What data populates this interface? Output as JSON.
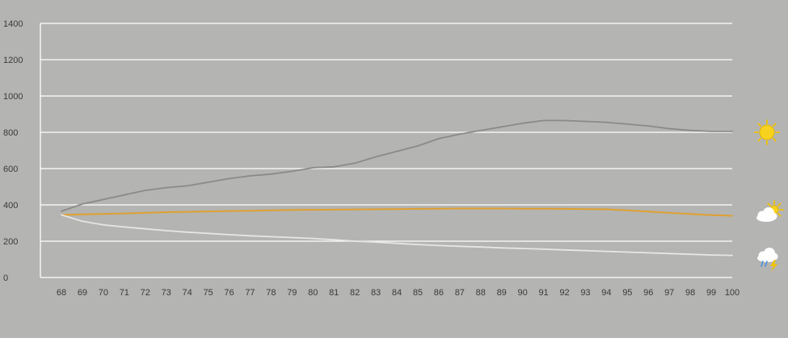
{
  "chart_data": {
    "type": "line",
    "title": "",
    "xlabel": "",
    "ylabel": "",
    "categories": [
      "68",
      "69",
      "70",
      "71",
      "72",
      "73",
      "74",
      "75",
      "76",
      "77",
      "78",
      "79",
      "80",
      "81",
      "82",
      "83",
      "84",
      "85",
      "86",
      "87",
      "88",
      "89",
      "90",
      "91",
      "92",
      "93",
      "94",
      "95",
      "96",
      "97",
      "98",
      "99",
      "100"
    ],
    "ylim": [
      0,
      1400
    ],
    "yticks": [
      "0",
      "200",
      "400",
      "600",
      "800",
      "1000",
      "1200",
      "1400"
    ],
    "grid": true,
    "legend": "none",
    "series": [
      {
        "color": "#8a8a88",
        "icon": "sun-icon",
        "values": [
          365,
          405,
          430,
          455,
          480,
          495,
          505,
          525,
          545,
          560,
          570,
          585,
          605,
          610,
          630,
          665,
          695,
          725,
          765,
          790,
          810,
          830,
          850,
          865,
          865,
          860,
          855,
          845,
          835,
          820,
          810,
          805,
          805
        ]
      },
      {
        "color": "#e0a030",
        "icon": "partly-cloudy-icon",
        "values": [
          345,
          348,
          350,
          353,
          356,
          360,
          362,
          364,
          366,
          368,
          370,
          372,
          373,
          374,
          375,
          376,
          377,
          378,
          379,
          380,
          380,
          380,
          379,
          379,
          378,
          377,
          376,
          370,
          363,
          356,
          350,
          344,
          340
        ]
      },
      {
        "color": "#e6e6e4",
        "icon": "thunderstorm-icon",
        "values": [
          345,
          310,
          290,
          278,
          268,
          258,
          250,
          243,
          236,
          230,
          225,
          220,
          215,
          208,
          200,
          195,
          188,
          182,
          176,
          172,
          168,
          163,
          160,
          156,
          152,
          148,
          144,
          140,
          136,
          132,
          128,
          124,
          122
        ]
      }
    ]
  }
}
